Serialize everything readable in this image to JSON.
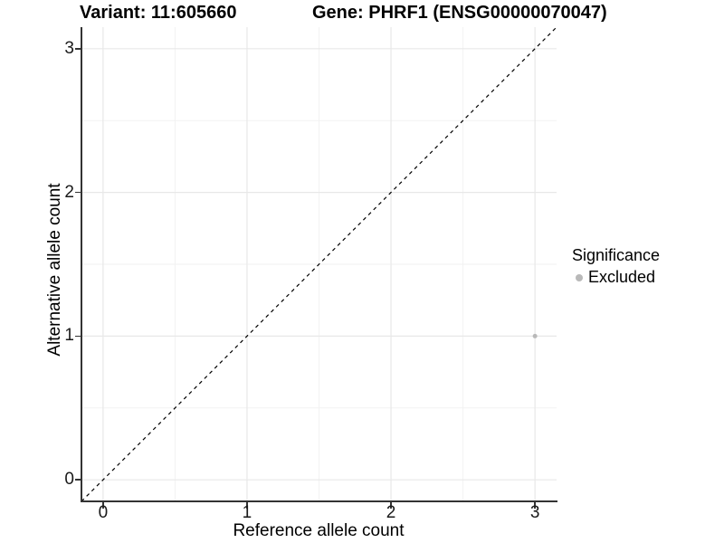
{
  "titles": {
    "variant": "Variant: 11:605660",
    "gene": "Gene: PHRF1 (ENSG00000070047)"
  },
  "axes": {
    "x": {
      "label": "Reference allele count",
      "tick_labels": [
        "0",
        "1",
        "2",
        "3"
      ]
    },
    "y": {
      "label": "Alternative allele count",
      "tick_labels": [
        "0",
        "1",
        "2",
        "3"
      ]
    }
  },
  "legend": {
    "title": "Significance",
    "items": [
      {
        "label": "Excluded",
        "color": "#b9b9b9"
      }
    ]
  },
  "colors": {
    "point": "#b9b9b9",
    "grid_major": "#e8e8e8",
    "grid_minor": "#f2f2f2",
    "axis_line": "#333333",
    "reference_line": "#000000",
    "background": "#ffffff"
  },
  "chart_data": {
    "type": "scatter",
    "title": "Variant: 11:605660  /  Gene: PHRF1 (ENSG00000070047)",
    "xlabel": "Reference allele count",
    "ylabel": "Alternative allele count",
    "xlim": [
      -0.15,
      3.15
    ],
    "ylim": [
      -0.15,
      3.15
    ],
    "xticks": [
      0,
      1,
      2,
      3
    ],
    "yticks": [
      0,
      1,
      2,
      3
    ],
    "xminor": [
      0.5,
      1.5,
      2.5
    ],
    "yminor": [
      0.5,
      1.5,
      2.5
    ],
    "grid": "major+minor",
    "legend_position": "right",
    "series": [
      {
        "name": "Excluded",
        "color": "#b9b9b9",
        "points": [
          {
            "x": 3,
            "y": 1
          }
        ]
      }
    ],
    "reference_line": {
      "slope": 1,
      "intercept": 0,
      "style": "dashed",
      "color": "#000000"
    }
  }
}
